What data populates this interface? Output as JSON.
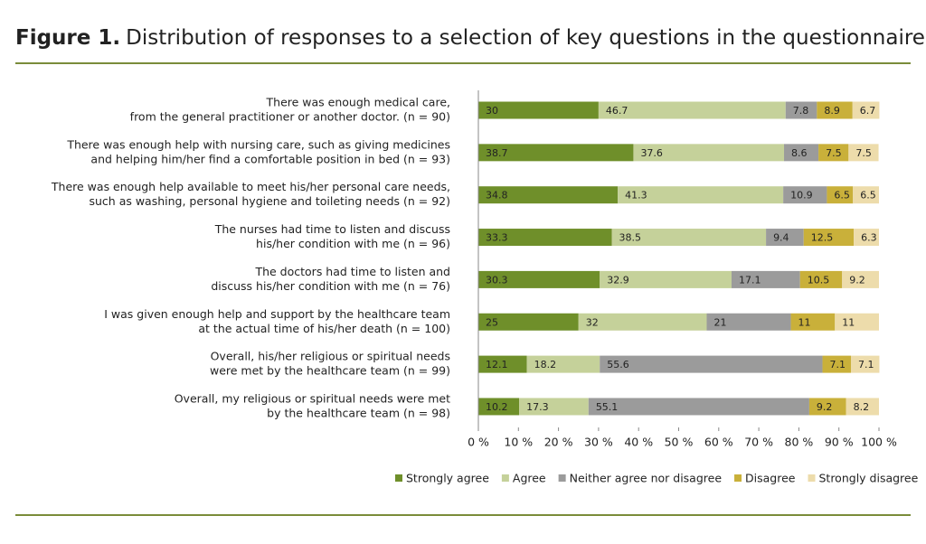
{
  "chart_data": {
    "type": "stacked-bar-horizontal",
    "label": "Figure 1.",
    "title": "Distribution of responses to a selection of key questions in the questionnaire",
    "categories": [
      [
        "There was enough medical care,",
        "from the general practitioner or another doctor. (n = 90)"
      ],
      [
        "There was enough help with nursing care, such as giving medicines",
        "and helping him/her find a comfortable position in bed (n = 93)"
      ],
      [
        "There was enough help available to meet his/her personal care needs,",
        "such as washing, personal hygiene and toileting needs (n = 92)"
      ],
      [
        "The nurses had time to listen and discuss",
        "his/her condition with me (n = 96)"
      ],
      [
        "The doctors had time to listen and",
        "discuss his/her condition with me (n = 76)"
      ],
      [
        "I was given enough help and support by the healthcare team",
        "at the actual time of his/her death (n = 100)"
      ],
      [
        "Overall,  his/her religious or spiritual needs",
        "were met by the healthcare team (n = 99)"
      ],
      [
        "Overall, my religious or spiritual needs were met",
        "by the healthcare team (n = 98)"
      ]
    ],
    "series": [
      {
        "name": "Strongly agree",
        "color": "#6f8f2a",
        "values": [
          30,
          38.7,
          34.8,
          33.3,
          30.3,
          25,
          12.1,
          10.2
        ]
      },
      {
        "name": "Agree",
        "color": "#c5d19a",
        "values": [
          46.7,
          37.6,
          41.3,
          38.5,
          32.9,
          32,
          18.2,
          17.3
        ]
      },
      {
        "name": "Neither agree nor disagree",
        "color": "#9b9b9b",
        "values": [
          7.8,
          8.6,
          10.9,
          9.4,
          17.1,
          21,
          55.6,
          55.1
        ]
      },
      {
        "name": "Disagree",
        "color": "#c9b03a",
        "values": [
          8.9,
          7.5,
          6.5,
          12.5,
          10.5,
          11,
          7.1,
          9.2
        ]
      },
      {
        "name": "Strongly disagree",
        "color": "#eddcab",
        "values": [
          6.7,
          7.5,
          6.5,
          6.3,
          9.2,
          11,
          7.1,
          8.2
        ]
      }
    ],
    "xlim": [
      0,
      100
    ],
    "xticks": [
      {
        "value": 0,
        "label": "0 %"
      },
      {
        "value": 10,
        "label": "10 %"
      },
      {
        "value": 20,
        "label": "20 %"
      },
      {
        "value": 30,
        "label": "30 %"
      },
      {
        "value": 40,
        "label": "40 %"
      },
      {
        "value": 50,
        "label": "50 %"
      },
      {
        "value": 60,
        "label": "60 %"
      },
      {
        "value": 70,
        "label": "70 %"
      },
      {
        "value": 80,
        "label": "80 %"
      },
      {
        "value": 90,
        "label": "90 %"
      },
      {
        "value": 100,
        "label": "100 %"
      }
    ],
    "legend": "bottom"
  }
}
